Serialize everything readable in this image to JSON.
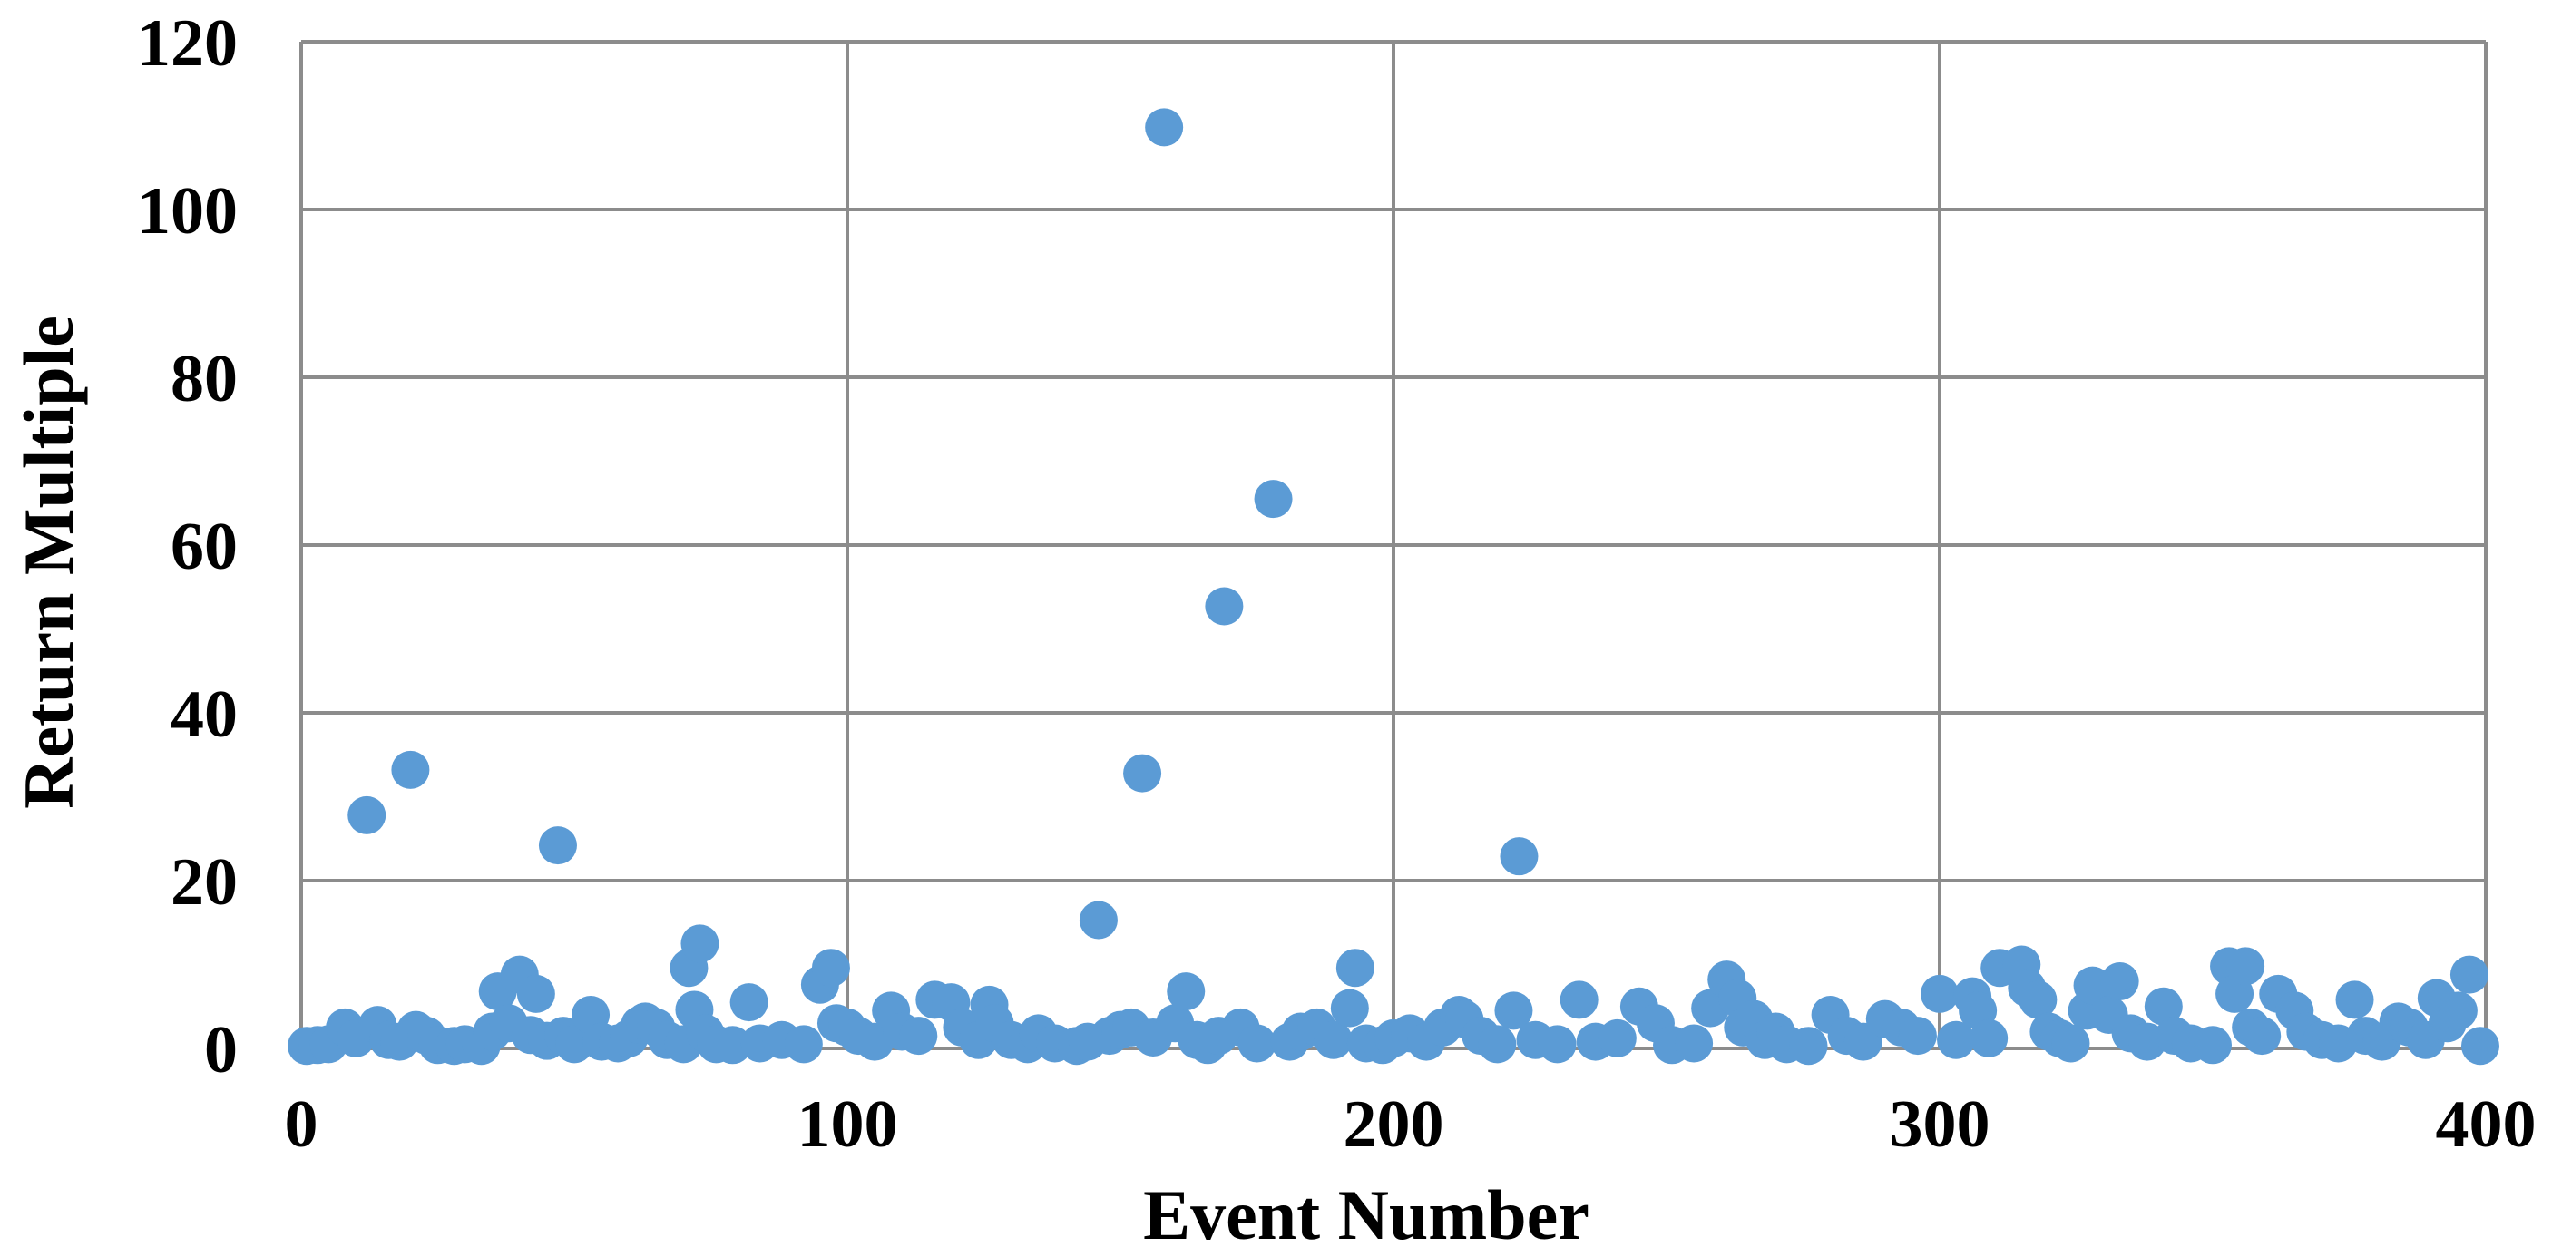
{
  "chart_data": {
    "type": "scatter",
    "title": "",
    "xlabel": "Event Number",
    "ylabel": "Return Multiple",
    "xlim": [
      0,
      400
    ],
    "ylim": [
      0,
      120
    ],
    "x_ticks": [
      0,
      100,
      200,
      300,
      400
    ],
    "y_ticks": [
      0,
      20,
      40,
      60,
      80,
      100,
      120
    ],
    "x_tick_labels": [
      "0",
      "100",
      "200",
      "300",
      "400"
    ],
    "y_tick_labels": [
      "0",
      "20",
      "40",
      "60",
      "80",
      "100",
      "120"
    ],
    "grid": true,
    "legend": "none",
    "marker_color": "#5B9BD5",
    "gridline_color": "#8C8C8C",
    "series": [
      {
        "name": "",
        "points": [
          [
            1,
            0.3
          ],
          [
            3,
            0.4
          ],
          [
            5,
            0.5
          ],
          [
            8,
            2.5
          ],
          [
            10,
            1.2
          ],
          [
            12,
            27.8
          ],
          [
            14,
            2.8
          ],
          [
            16,
            1.0
          ],
          [
            18,
            0.8
          ],
          [
            20,
            33.2
          ],
          [
            21,
            2.2
          ],
          [
            23,
            1.5
          ],
          [
            25,
            0.4
          ],
          [
            28,
            0.3
          ],
          [
            30,
            0.5
          ],
          [
            33,
            0.3
          ],
          [
            35,
            2.0
          ],
          [
            36,
            6.8
          ],
          [
            38,
            3.0
          ],
          [
            40,
            8.8
          ],
          [
            42,
            1.6
          ],
          [
            43,
            6.5
          ],
          [
            45,
            0.9
          ],
          [
            47,
            24.2
          ],
          [
            48,
            1.5
          ],
          [
            50,
            0.5
          ],
          [
            53,
            4.0
          ],
          [
            55,
            0.8
          ],
          [
            58,
            0.6
          ],
          [
            60,
            1.2
          ],
          [
            62,
            2.8
          ],
          [
            63,
            3.2
          ],
          [
            65,
            2.5
          ],
          [
            67,
            1.0
          ],
          [
            70,
            0.5
          ],
          [
            71,
            9.6
          ],
          [
            72,
            4.6
          ],
          [
            73,
            12.5
          ],
          [
            74,
            1.8
          ],
          [
            76,
            0.5
          ],
          [
            79,
            0.4
          ],
          [
            82,
            5.5
          ],
          [
            84,
            0.6
          ],
          [
            88,
            1.0
          ],
          [
            92,
            0.5
          ],
          [
            95,
            7.6
          ],
          [
            97,
            9.6
          ],
          [
            98,
            3.0
          ],
          [
            100,
            2.5
          ],
          [
            102,
            1.5
          ],
          [
            105,
            0.8
          ],
          [
            108,
            4.5
          ],
          [
            110,
            2.0
          ],
          [
            113,
            1.5
          ],
          [
            116,
            5.8
          ],
          [
            119,
            5.5
          ],
          [
            121,
            2.5
          ],
          [
            124,
            1.0
          ],
          [
            126,
            5.2
          ],
          [
            127,
            3.0
          ],
          [
            130,
            1.0
          ],
          [
            133,
            0.5
          ],
          [
            135,
            1.8
          ],
          [
            138,
            0.6
          ],
          [
            142,
            0.3
          ],
          [
            144,
            0.8
          ],
          [
            146,
            15.3
          ],
          [
            148,
            1.5
          ],
          [
            150,
            2.2
          ],
          [
            152,
            2.5
          ],
          [
            154,
            32.8
          ],
          [
            156,
            1.3
          ],
          [
            158,
            109.8
          ],
          [
            160,
            3.0
          ],
          [
            162,
            6.8
          ],
          [
            164,
            1.0
          ],
          [
            166,
            0.4
          ],
          [
            168,
            1.5
          ],
          [
            169,
            52.7
          ],
          [
            172,
            2.5
          ],
          [
            175,
            0.6
          ],
          [
            178,
            65.5
          ],
          [
            181,
            0.8
          ],
          [
            183,
            2.0
          ],
          [
            186,
            2.5
          ],
          [
            189,
            1.0
          ],
          [
            192,
            4.8
          ],
          [
            193,
            9.6
          ],
          [
            195,
            0.6
          ],
          [
            198,
            0.4
          ],
          [
            200,
            1.2
          ],
          [
            203,
            1.8
          ],
          [
            206,
            0.8
          ],
          [
            209,
            2.5
          ],
          [
            212,
            4.0
          ],
          [
            213,
            3.5
          ],
          [
            216,
            1.5
          ],
          [
            219,
            0.5
          ],
          [
            222,
            4.5
          ],
          [
            223,
            22.9
          ],
          [
            226,
            1.0
          ],
          [
            230,
            0.5
          ],
          [
            234,
            5.8
          ],
          [
            237,
            0.8
          ],
          [
            241,
            1.2
          ],
          [
            245,
            5.0
          ],
          [
            248,
            3.0
          ],
          [
            251,
            0.4
          ],
          [
            255,
            0.6
          ],
          [
            258,
            4.8
          ],
          [
            261,
            8.2
          ],
          [
            263,
            6.0
          ],
          [
            264,
            2.5
          ],
          [
            266,
            3.5
          ],
          [
            268,
            1.0
          ],
          [
            270,
            2.0
          ],
          [
            272,
            0.5
          ],
          [
            276,
            0.3
          ],
          [
            280,
            4.0
          ],
          [
            283,
            1.5
          ],
          [
            286,
            0.8
          ],
          [
            290,
            3.5
          ],
          [
            293,
            2.5
          ],
          [
            296,
            1.5
          ],
          [
            300,
            6.5
          ],
          [
            303,
            1.0
          ],
          [
            306,
            6.2
          ],
          [
            307,
            4.5
          ],
          [
            309,
            1.2
          ],
          [
            311,
            9.6
          ],
          [
            315,
            10.0
          ],
          [
            316,
            7.2
          ],
          [
            318,
            5.8
          ],
          [
            320,
            2.0
          ],
          [
            322,
            1.2
          ],
          [
            324,
            0.6
          ],
          [
            327,
            4.5
          ],
          [
            328,
            7.5
          ],
          [
            331,
            4.0
          ],
          [
            333,
            8.0
          ],
          [
            335,
            1.8
          ],
          [
            338,
            0.8
          ],
          [
            341,
            5.0
          ],
          [
            343,
            1.5
          ],
          [
            346,
            0.6
          ],
          [
            350,
            0.4
          ],
          [
            353,
            9.8
          ],
          [
            354,
            6.5
          ],
          [
            356,
            9.8
          ],
          [
            357,
            2.5
          ],
          [
            359,
            1.5
          ],
          [
            362,
            6.5
          ],
          [
            365,
            4.5
          ],
          [
            367,
            2.0
          ],
          [
            370,
            1.0
          ],
          [
            373,
            0.6
          ],
          [
            376,
            5.8
          ],
          [
            378,
            1.5
          ],
          [
            381,
            0.8
          ],
          [
            384,
            3.2
          ],
          [
            386,
            2.5
          ],
          [
            389,
            1.0
          ],
          [
            391,
            6.0
          ],
          [
            393,
            3.0
          ],
          [
            395,
            4.5
          ],
          [
            397,
            8.8
          ],
          [
            399,
            0.3
          ]
        ]
      }
    ]
  }
}
